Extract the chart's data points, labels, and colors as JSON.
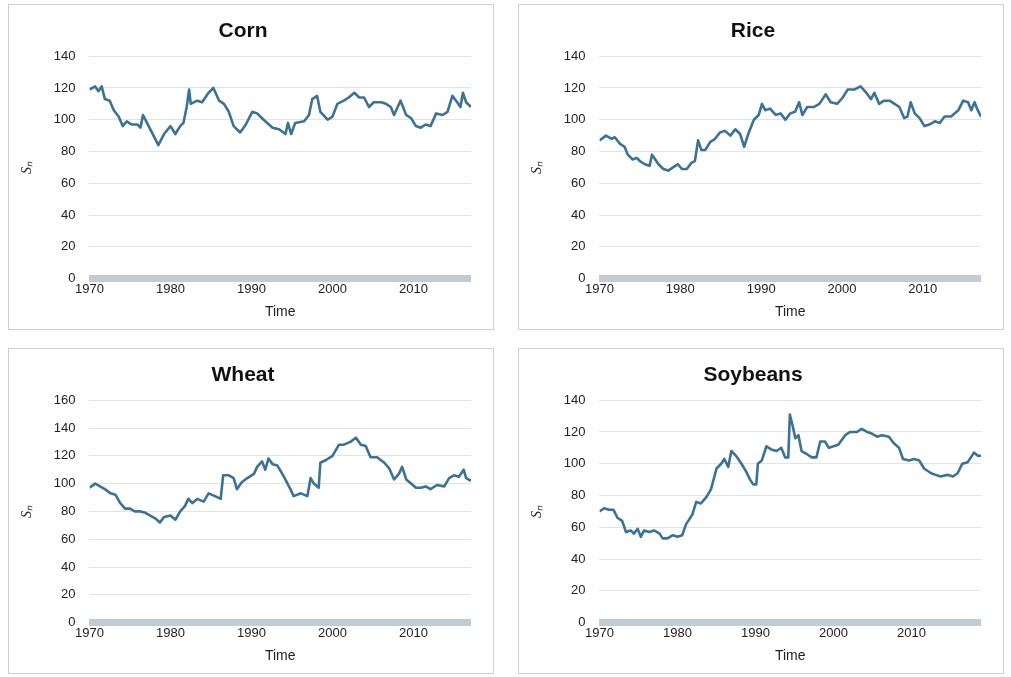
{
  "chart_data": [
    {
      "type": "line",
      "title": "Corn",
      "xlabel": "Time",
      "ylabel": "Sₙ",
      "xlim": [
        1970,
        2017.1
      ],
      "xticks": [
        1970,
        1980,
        1990,
        2000,
        2010
      ],
      "ylim": [
        0,
        140
      ],
      "yticks": [
        0,
        20,
        40,
        60,
        80,
        100,
        120,
        140
      ],
      "grid": "y",
      "x": [
        1970.0,
        1970.7,
        1971.1,
        1971.5,
        1971.9,
        1972.5,
        1973.0,
        1973.6,
        1974.1,
        1974.6,
        1975.2,
        1975.9,
        1976.3,
        1976.6,
        1977.1,
        1977.7,
        1978.5,
        1979.2,
        1980.0,
        1980.6,
        1981.2,
        1981.6,
        1982.0,
        1982.3,
        1982.5,
        1983.3,
        1983.9,
        1984.7,
        1985.3,
        1986.0,
        1986.6,
        1987.2,
        1987.8,
        1988.6,
        1989.3,
        1990.1,
        1990.7,
        1991.5,
        1992.6,
        1993.4,
        1994.2,
        1994.5,
        1994.9,
        1995.4,
        1996.5,
        1997.1,
        1997.5,
        1998.1,
        1998.5,
        1999.4,
        2000.0,
        2000.6,
        2001.4,
        2002.0,
        2002.7,
        2003.3,
        2003.9,
        2004.5,
        2005.1,
        2006.0,
        2006.6,
        2007.2,
        2007.6,
        2008.4,
        2009.1,
        2009.7,
        2010.3,
        2010.9,
        2011.5,
        2012.1,
        2012.8,
        2013.6,
        2014.2,
        2014.8,
        2015.4,
        2015.8,
        2016.1,
        2016.5,
        2017.1
      ],
      "series": [
        {
          "color": "#3a7394",
          "values": [
            119,
            121,
            118,
            121,
            113,
            112,
            106,
            102,
            96,
            99,
            97,
            97,
            95,
            103,
            98,
            92,
            84,
            91,
            96,
            91,
            96,
            98,
            108,
            119,
            110,
            112,
            111,
            117,
            120,
            112,
            110,
            105,
            96,
            92,
            97,
            105,
            104,
            100,
            95,
            94,
            91,
            98,
            91,
            98,
            99,
            103,
            113,
            115,
            105,
            100,
            102,
            110,
            112,
            114,
            117,
            114,
            114,
            108,
            111,
            111,
            110,
            108,
            103,
            112,
            103,
            101,
            96,
            95,
            97,
            96,
            104,
            103,
            105,
            115,
            111,
            108,
            117,
            111,
            108
          ]
        }
      ]
    },
    {
      "type": "line",
      "title": "Rice",
      "xlabel": "Time",
      "ylabel": "Sₙ",
      "xlim": [
        1970,
        2017.2
      ],
      "xticks": [
        1970,
        1980,
        1990,
        2000,
        2010
      ],
      "ylim": [
        0,
        140
      ],
      "yticks": [
        0,
        20,
        40,
        60,
        80,
        100,
        120,
        140
      ],
      "grid": "y",
      "x": [
        1970.0,
        1970.8,
        1971.5,
        1971.9,
        1972.5,
        1973.1,
        1973.5,
        1974.1,
        1974.6,
        1975.0,
        1975.6,
        1976.2,
        1976.5,
        1977.3,
        1977.9,
        1978.5,
        1979.1,
        1979.7,
        1980.2,
        1980.8,
        1981.4,
        1981.8,
        1982.2,
        1982.6,
        1983.1,
        1983.7,
        1984.3,
        1984.9,
        1985.5,
        1986.2,
        1986.8,
        1987.4,
        1987.9,
        1988.4,
        1989.1,
        1989.7,
        1990.1,
        1990.5,
        1991.1,
        1991.8,
        1992.4,
        1993.0,
        1993.6,
        1994.2,
        1994.7,
        1995.1,
        1995.7,
        1996.5,
        1997.2,
        1998.0,
        1998.6,
        1999.4,
        2000.1,
        2000.7,
        2001.5,
        2002.3,
        2003.0,
        2003.6,
        2004.0,
        2004.6,
        2005.2,
        2005.9,
        2006.5,
        2007.1,
        2007.7,
        2008.1,
        2008.5,
        2009.0,
        2009.6,
        2010.2,
        2010.8,
        2011.5,
        2012.1,
        2012.7,
        2013.5,
        2014.4,
        2015.0,
        2015.6,
        2016.0,
        2016.4,
        2016.8,
        2017.2
      ],
      "series": [
        {
          "color": "#3a7394",
          "values": [
            87,
            90,
            88,
            89,
            85,
            83,
            78,
            75,
            76,
            74,
            72,
            71,
            78,
            72,
            69,
            68,
            70,
            72,
            69,
            69,
            73,
            74,
            87,
            81,
            81,
            86,
            88,
            92,
            93,
            90,
            94,
            91,
            83,
            91,
            100,
            103,
            110,
            106,
            107,
            103,
            104,
            100,
            104,
            105,
            111,
            103,
            108,
            108,
            110,
            116,
            111,
            110,
            114,
            119,
            119,
            121,
            117,
            113,
            117,
            110,
            112,
            112,
            110,
            108,
            101,
            102,
            111,
            104,
            101,
            96,
            97,
            99,
            98,
            102,
            102,
            106,
            112,
            111,
            106,
            111,
            106,
            102
          ]
        }
      ]
    },
    {
      "type": "line",
      "title": "Wheat",
      "xlabel": "Time",
      "ylabel": "Sₙ",
      "xlim": [
        1970,
        2017.1
      ],
      "xticks": [
        1970,
        1980,
        1990,
        2000,
        2010
      ],
      "ylim": [
        0,
        160
      ],
      "yticks": [
        0,
        20,
        40,
        60,
        80,
        100,
        120,
        140,
        160
      ],
      "grid": "y",
      "x": [
        1970.0,
        1970.7,
        1971.3,
        1971.9,
        1972.6,
        1973.2,
        1973.8,
        1974.4,
        1975.0,
        1975.6,
        1976.3,
        1976.9,
        1977.5,
        1978.1,
        1978.7,
        1979.2,
        1980.0,
        1980.6,
        1981.2,
        1981.8,
        1982.2,
        1982.7,
        1983.3,
        1984.1,
        1984.7,
        1985.5,
        1986.2,
        1986.5,
        1987.2,
        1987.8,
        1988.2,
        1988.8,
        1989.5,
        1990.3,
        1990.7,
        1991.3,
        1991.7,
        1992.1,
        1992.6,
        1993.2,
        1994.0,
        1994.8,
        1995.2,
        1996.1,
        1996.9,
        1997.3,
        1997.7,
        1998.3,
        1998.5,
        1999.2,
        2000.0,
        2000.8,
        2001.4,
        2002.2,
        2002.9,
        2003.5,
        2004.1,
        2004.7,
        2005.5,
        2006.4,
        2007.0,
        2007.6,
        2008.2,
        2008.6,
        2009.1,
        2009.7,
        2010.3,
        2010.9,
        2011.5,
        2012.1,
        2012.9,
        2013.8,
        2014.4,
        2015.0,
        2015.6,
        2016.2,
        2016.5,
        2017.1
      ],
      "series": [
        {
          "color": "#3a7394",
          "values": [
            97,
            100,
            98,
            96,
            93,
            92,
            86,
            82,
            82,
            80,
            80,
            79,
            77,
            75,
            72,
            76,
            77,
            74,
            80,
            84,
            89,
            86,
            89,
            87,
            93,
            91,
            89,
            106,
            106,
            104,
            96,
            101,
            104,
            107,
            112,
            116,
            110,
            118,
            114,
            113,
            105,
            96,
            91,
            93,
            91,
            104,
            100,
            97,
            115,
            117,
            120,
            128,
            128,
            130,
            133,
            128,
            127,
            119,
            119,
            115,
            111,
            103,
            107,
            112,
            103,
            100,
            97,
            97,
            98,
            96,
            99,
            98,
            104,
            106,
            105,
            110,
            104,
            102
          ]
        }
      ]
    },
    {
      "type": "line",
      "title": "Soybeans",
      "xlabel": "Time",
      "ylabel": "Sₙ",
      "xlim": [
        1970,
        2018.9
      ],
      "xticks": [
        1970,
        1980,
        1990,
        2000,
        2010
      ],
      "ylim": [
        0,
        140
      ],
      "yticks": [
        0,
        20,
        40,
        60,
        80,
        100,
        120,
        140
      ],
      "grid": "y",
      "x": [
        1970.0,
        1970.6,
        1971.2,
        1971.8,
        1972.3,
        1972.9,
        1973.4,
        1974.0,
        1974.4,
        1974.9,
        1975.3,
        1975.7,
        1976.4,
        1977.0,
        1977.7,
        1978.1,
        1978.7,
        1979.4,
        1980.0,
        1980.6,
        1981.1,
        1981.5,
        1981.9,
        1982.4,
        1983.0,
        1983.7,
        1984.3,
        1985.0,
        1985.6,
        1986.0,
        1986.5,
        1986.9,
        1987.5,
        1988.2,
        1988.8,
        1989.3,
        1989.7,
        1990.1,
        1990.3,
        1990.8,
        1991.4,
        1992.0,
        1992.7,
        1993.3,
        1993.8,
        1994.2,
        1994.4,
        1994.8,
        1995.1,
        1995.5,
        1995.9,
        1996.6,
        1997.2,
        1997.8,
        1998.3,
        1998.9,
        1999.4,
        2000.0,
        2000.6,
        2001.5,
        2002.1,
        2003.0,
        2003.6,
        2004.3,
        2004.9,
        2005.6,
        2006.2,
        2007.1,
        2007.7,
        2008.4,
        2008.9,
        2009.7,
        2010.3,
        2011.0,
        2011.6,
        2012.5,
        2013.1,
        2013.7,
        2014.6,
        2015.3,
        2015.9,
        2016.5,
        2017.2,
        2017.6,
        2018.0,
        2018.5,
        2018.9
      ],
      "series": [
        {
          "color": "#3a7394",
          "values": [
            70,
            72,
            71,
            71,
            66,
            64,
            57,
            58,
            56,
            59,
            54,
            58,
            57,
            58,
            56,
            53,
            53,
            55,
            54,
            55,
            62,
            65,
            68,
            76,
            75,
            79,
            84,
            97,
            100,
            103,
            98,
            108,
            105,
            100,
            95,
            90,
            87,
            87,
            100,
            102,
            111,
            109,
            108,
            110,
            104,
            104,
            131,
            123,
            116,
            118,
            108,
            106,
            104,
            104,
            114,
            114,
            110,
            111,
            112,
            118,
            120,
            120,
            122,
            120,
            119,
            117,
            118,
            117,
            113,
            110,
            103,
            102,
            103,
            102,
            97,
            94,
            93,
            92,
            93,
            92,
            94,
            100,
            101,
            104,
            107,
            105,
            105
          ]
        }
      ]
    }
  ]
}
